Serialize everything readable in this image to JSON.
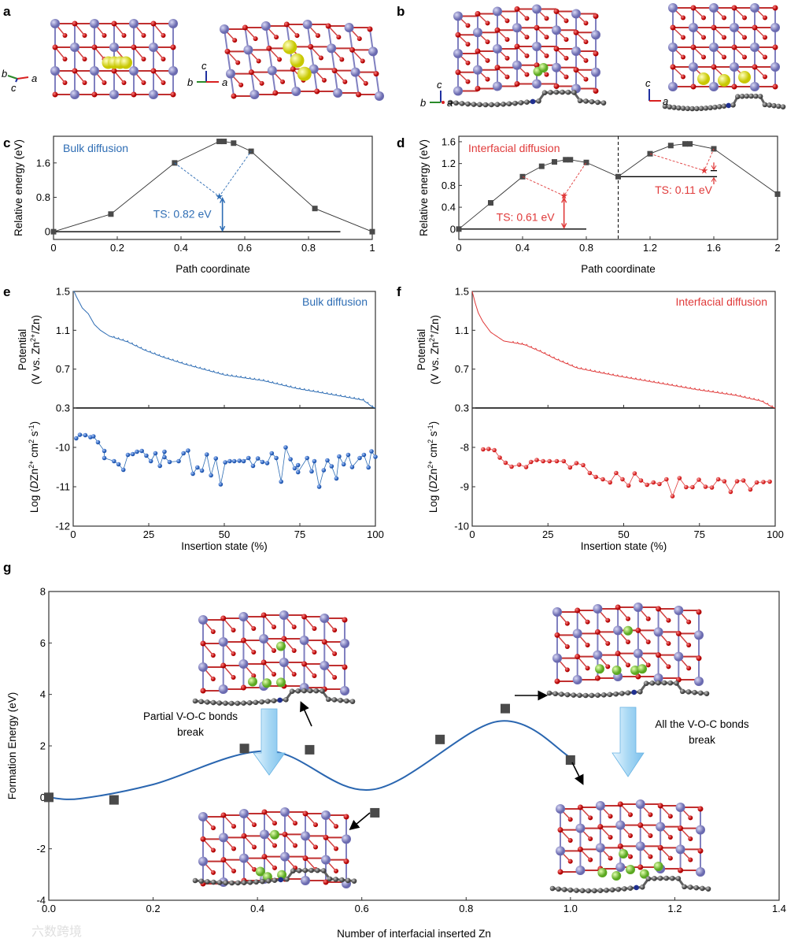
{
  "panel_labels": {
    "a": "a",
    "b": "b",
    "c": "c",
    "d": "d",
    "e": "e",
    "f": "f",
    "g": "g"
  },
  "structure_axes": {
    "a_left": {
      "b": "b",
      "c": "c",
      "a": "a"
    },
    "a_right": {
      "c": "c",
      "b": "b",
      "a": "a"
    },
    "b_left": {
      "c": "c",
      "b": "b",
      "a": "a"
    },
    "b_right": {
      "c": "c",
      "a": "a"
    }
  },
  "colors": {
    "bulk": "#2e6db4",
    "interfacial": "#e03a3a",
    "marker": "#4a4a4a",
    "vanadium": "#8c8cc8",
    "oxygen": "#d81818",
    "zinc_bulk": "#e6e619",
    "zinc": "#8cd23c",
    "carbon": "#707070",
    "arrow_fill": "#bfe3f7"
  },
  "watermark": "六数跨境",
  "chart_data": [
    {
      "id": "c",
      "type": "line",
      "title": "Bulk diffusion",
      "xlabel": "Path coordinate",
      "ylabel": "Relative energy (eV)",
      "xlim": [
        0,
        1
      ],
      "ylim": [
        -0.18,
        2.22
      ],
      "xticks": [
        0,
        0.2,
        0.4,
        0.6,
        0.8,
        1
      ],
      "xtick_labels": [
        "0",
        "0.2",
        "0.4",
        "0.6",
        "0.8",
        "1"
      ],
      "yticks": [
        0,
        0.8,
        1.6
      ],
      "ytick_labels": [
        "0",
        "0.8",
        "1.6"
      ],
      "series": [
        {
          "name": "path",
          "x": [
            0,
            0.18,
            0.38,
            0.52,
            0.535,
            0.565,
            0.62,
            0.82,
            1
          ],
          "y": [
            0,
            0.41,
            1.6,
            2.1,
            2.1,
            2.06,
            1.87,
            0.54,
            0
          ]
        }
      ],
      "ts_points": [
        {
          "x": 0.52,
          "y": 0.82,
          "from": [
            0.38,
            1.6
          ],
          "to": [
            0.62,
            1.87
          ]
        }
      ],
      "baselines": [
        {
          "y": 0,
          "x": [
            0,
            0.9
          ]
        }
      ],
      "annotations": [
        {
          "text": "TS: 0.82 eV",
          "value": 0.82
        }
      ]
    },
    {
      "id": "d",
      "type": "line",
      "title": "Interfacial diffusion",
      "xlabel": "Path coordinate",
      "ylabel": "Relative energy (eV)",
      "xlim": [
        0,
        2
      ],
      "ylim": [
        -0.19,
        1.7
      ],
      "xticks": [
        0,
        0.4,
        0.8,
        1.2,
        1.6,
        2
      ],
      "xtick_labels": [
        "0",
        "0.4",
        "0.8",
        "1.2",
        "1.6",
        "2"
      ],
      "yticks": [
        0,
        0.4,
        0.8,
        1.2,
        1.6
      ],
      "ytick_labels": [
        "0",
        "0.4",
        "0.8",
        "1.2",
        "1.6"
      ],
      "series": [
        {
          "name": "path",
          "x": [
            0,
            0.2,
            0.4,
            0.52,
            0.6,
            0.67,
            0.7,
            0.8,
            1,
            1.2,
            1.33,
            1.42,
            1.45,
            1.6,
            2
          ],
          "y": [
            0,
            0.48,
            0.96,
            1.15,
            1.23,
            1.27,
            1.27,
            1.22,
            0.96,
            1.38,
            1.53,
            1.56,
            1.56,
            1.47,
            0.64
          ]
        }
      ],
      "ts_points": [
        {
          "x": 0.66,
          "y": 0.61,
          "from": [
            0.4,
            0.96
          ],
          "to": [
            0.8,
            1.22
          ]
        },
        {
          "x": 1.54,
          "y": 1.07,
          "from": [
            1.2,
            1.38
          ],
          "to": [
            1.6,
            1.47
          ]
        }
      ],
      "baselines": [
        {
          "y": 0,
          "x": [
            0,
            0.8
          ]
        },
        {
          "y": 0.96,
          "x": [
            1,
            1.62
          ]
        },
        {
          "y": 1.07,
          "x": [
            1.58,
            1.62
          ]
        }
      ],
      "divider_x": 1,
      "annotations": [
        {
          "text": "TS: 0.61 eV",
          "value": 0.61
        },
        {
          "text": "TS: 0.11 eV",
          "value": 0.11
        }
      ]
    },
    {
      "id": "e",
      "type": "line+scatter",
      "title": "Bulk diffusion",
      "xlabel": "Insertion state (%)",
      "xlim": [
        0,
        100
      ],
      "xticks": [
        0,
        25,
        50,
        75,
        100
      ],
      "xtick_labels": [
        "0",
        "25",
        "50",
        "75",
        "100"
      ],
      "potential": {
        "ylabel_parts": [
          "Potential",
          "(V vs. Zn",
          "2+",
          "/Zn)"
        ],
        "ylim": [
          0.3,
          1.5
        ],
        "yticks": [
          0.3,
          0.7,
          1.1,
          1.5
        ],
        "ytick_labels": [
          "0.3",
          "0.7",
          "1.1",
          "1.5"
        ],
        "x": [
          0,
          1,
          3,
          5,
          7,
          9,
          12,
          18,
          24,
          30,
          37,
          50,
          63,
          74,
          87,
          96,
          99,
          100
        ],
        "y": [
          1.52,
          1.45,
          1.33,
          1.27,
          1.16,
          1.1,
          1.04,
          0.98,
          0.89,
          0.82,
          0.75,
          0.64,
          0.58,
          0.5,
          0.43,
          0.38,
          0.31,
          0.3
        ]
      },
      "diffusion": {
        "ylabel_parts": [
          "Log (",
          "D",
          "Zn",
          "2+",
          " cm",
          "2",
          " s",
          "-1",
          ")"
        ],
        "ylim": [
          -12,
          -9
        ],
        "yticks": [
          -12,
          -11,
          -10
        ],
        "ytick_labels": [
          "-12",
          "-11",
          "-10"
        ],
        "x": [
          1,
          2.2,
          4,
          5.7,
          6.7,
          8.2,
          10.3,
          10.3,
          13.5,
          15,
          16.6,
          18.1,
          19.7,
          21.1,
          22.7,
          24.2,
          25.7,
          27.2,
          28.7,
          30.2,
          30.2,
          31.9,
          34.9,
          36.5,
          38,
          39.6,
          41.1,
          42.6,
          44.2,
          45.6,
          47.2,
          48.8,
          50.3,
          51.8,
          53.3,
          55,
          56.4,
          58,
          59.5,
          61.1,
          62.6,
          64.2,
          65.7,
          67.2,
          68.8,
          70.3,
          71.9,
          73.3,
          74.4,
          74.4,
          77.4,
          78.9,
          79.8,
          81.4,
          82.9,
          84.1,
          85.5,
          87.1,
          88,
          89.5,
          91,
          92.3,
          94.8,
          96.2,
          97.7,
          98.7,
          100
        ],
        "y": [
          -9.77,
          -9.68,
          -9.69,
          -9.74,
          -9.72,
          -9.87,
          -10.09,
          -10.27,
          -10.35,
          -10.43,
          -10.57,
          -10.19,
          -10.17,
          -10.11,
          -10.09,
          -10.21,
          -10.35,
          -10.15,
          -10.47,
          -10.11,
          -10.25,
          -10.37,
          -10.35,
          -10.15,
          -10.08,
          -10.67,
          -10.51,
          -10.59,
          -10.18,
          -10.71,
          -10.28,
          -10.94,
          -10.38,
          -10.35,
          -10.35,
          -10.34,
          -10.35,
          -10.27,
          -10.47,
          -10.28,
          -10.37,
          -10.4,
          -10.15,
          -10.27,
          -10.87,
          -10,
          -10.3,
          -10.53,
          -10.45,
          -10.63,
          -10.27,
          -10.61,
          -10.35,
          -11,
          -10.58,
          -10.33,
          -10.48,
          -10.79,
          -10.23,
          -10.43,
          -10.19,
          -10.5,
          -10.27,
          -10.19,
          -10.51,
          -10.1,
          -10.24
        ]
      }
    },
    {
      "id": "f",
      "type": "line+scatter",
      "title": "Interfacial diffusion",
      "xlabel": "Insertion state (%)",
      "xlim": [
        0,
        100
      ],
      "xticks": [
        0,
        25,
        50,
        75,
        100
      ],
      "xtick_labels": [
        "0",
        "25",
        "50",
        "75",
        "100"
      ],
      "potential": {
        "ylabel_parts": [
          "Potential",
          "(V vs. Zn",
          "2+",
          "/Zn)"
        ],
        "ylim": [
          0.3,
          1.5
        ],
        "yticks": [
          0.3,
          0.7,
          1.1,
          1.5
        ],
        "ytick_labels": [
          "0.3",
          "0.7",
          "1.1",
          "1.5"
        ],
        "x": [
          0,
          1,
          2,
          3.5,
          6.1,
          10.4,
          17.4,
          22.6,
          27.8,
          34.7,
          47.7,
          60.8,
          73.8,
          86.8,
          95.5,
          99,
          100
        ],
        "y": [
          1.5,
          1.38,
          1.28,
          1.19,
          1.08,
          0.99,
          0.95,
          0.88,
          0.8,
          0.71,
          0.63,
          0.56,
          0.49,
          0.43,
          0.37,
          0.31,
          0.3
        ]
      },
      "diffusion": {
        "ylabel_parts": [
          "Log (",
          "D",
          "Zn",
          "2+",
          " cm",
          "2",
          " s",
          "-1",
          ")"
        ],
        "ylim": [
          -10,
          -7
        ],
        "yticks": [
          -10,
          -9,
          -8
        ],
        "ytick_labels": [
          "-10",
          "-9",
          "-8"
        ],
        "x": [
          3.6,
          5.4,
          7.3,
          9.1,
          11,
          13,
          15.5,
          17.8,
          19.4,
          21.3,
          23.4,
          25.5,
          27.9,
          30.2,
          32.3,
          34.4,
          36.6,
          38.8,
          40.8,
          43.1,
          45.5,
          47.5,
          49.6,
          51.6,
          53.6,
          55.7,
          57.7,
          59.8,
          61.8,
          64.1,
          66.1,
          68.4,
          70.6,
          72.7,
          74.8,
          77,
          79.1,
          81.2,
          83.2,
          85.3,
          87.4,
          89.5,
          91.8,
          93.9,
          96.1,
          98.2
        ],
        "y": [
          -8.05,
          -8.04,
          -8.07,
          -8.26,
          -8.39,
          -8.49,
          -8.44,
          -8.5,
          -8.37,
          -8.32,
          -8.35,
          -8.35,
          -8.35,
          -8.35,
          -8.51,
          -8.4,
          -8.45,
          -8.65,
          -8.75,
          -8.81,
          -8.89,
          -8.65,
          -8.81,
          -8.97,
          -8.66,
          -8.84,
          -8.95,
          -8.89,
          -8.93,
          -8.81,
          -9.24,
          -8.78,
          -9.01,
          -9.01,
          -8.82,
          -9,
          -9.02,
          -8.81,
          -8.86,
          -9.13,
          -8.86,
          -8.84,
          -9.07,
          -8.89,
          -8.88,
          -8.87
        ]
      }
    },
    {
      "id": "g",
      "type": "scatter+line",
      "xlabel": "Number of interfacial inserted Zn",
      "ylabel": "Formation Energy (eV)",
      "xlim": [
        0,
        1.4
      ],
      "ylim": [
        -4,
        8
      ],
      "xticks": [
        0,
        0.2,
        0.4,
        0.6,
        0.8,
        1,
        1.2,
        1.4
      ],
      "xtick_labels": [
        "0.0",
        "0.2",
        "0.4",
        "0.6",
        "0.8",
        "1.0",
        "1.2",
        "1.4"
      ],
      "yticks": [
        -4,
        -2,
        0,
        2,
        4,
        6,
        8
      ],
      "ytick_labels": [
        "-4",
        "-2",
        "0",
        "2",
        "4",
        "6",
        "8"
      ],
      "points": {
        "x": [
          0,
          0.125,
          0.375,
          0.5,
          0.625,
          0.75,
          0.875,
          1.0
        ],
        "y": [
          0,
          -0.1,
          1.9,
          1.85,
          -0.6,
          2.25,
          3.45,
          1.45
        ]
      },
      "fit_curve": {
        "x": [
          0,
          0.06,
          0.2,
          0.42,
          0.62,
          0.86,
          1.0
        ],
        "y": [
          0,
          -0.05,
          0.5,
          1.8,
          0.3,
          2.95,
          1.55
        ]
      },
      "annotations": [
        {
          "lines": [
            "Partial V-O-C bonds",
            "break"
          ]
        },
        {
          "lines": [
            "All the V-O-C bonds",
            "break"
          ]
        }
      ]
    }
  ]
}
